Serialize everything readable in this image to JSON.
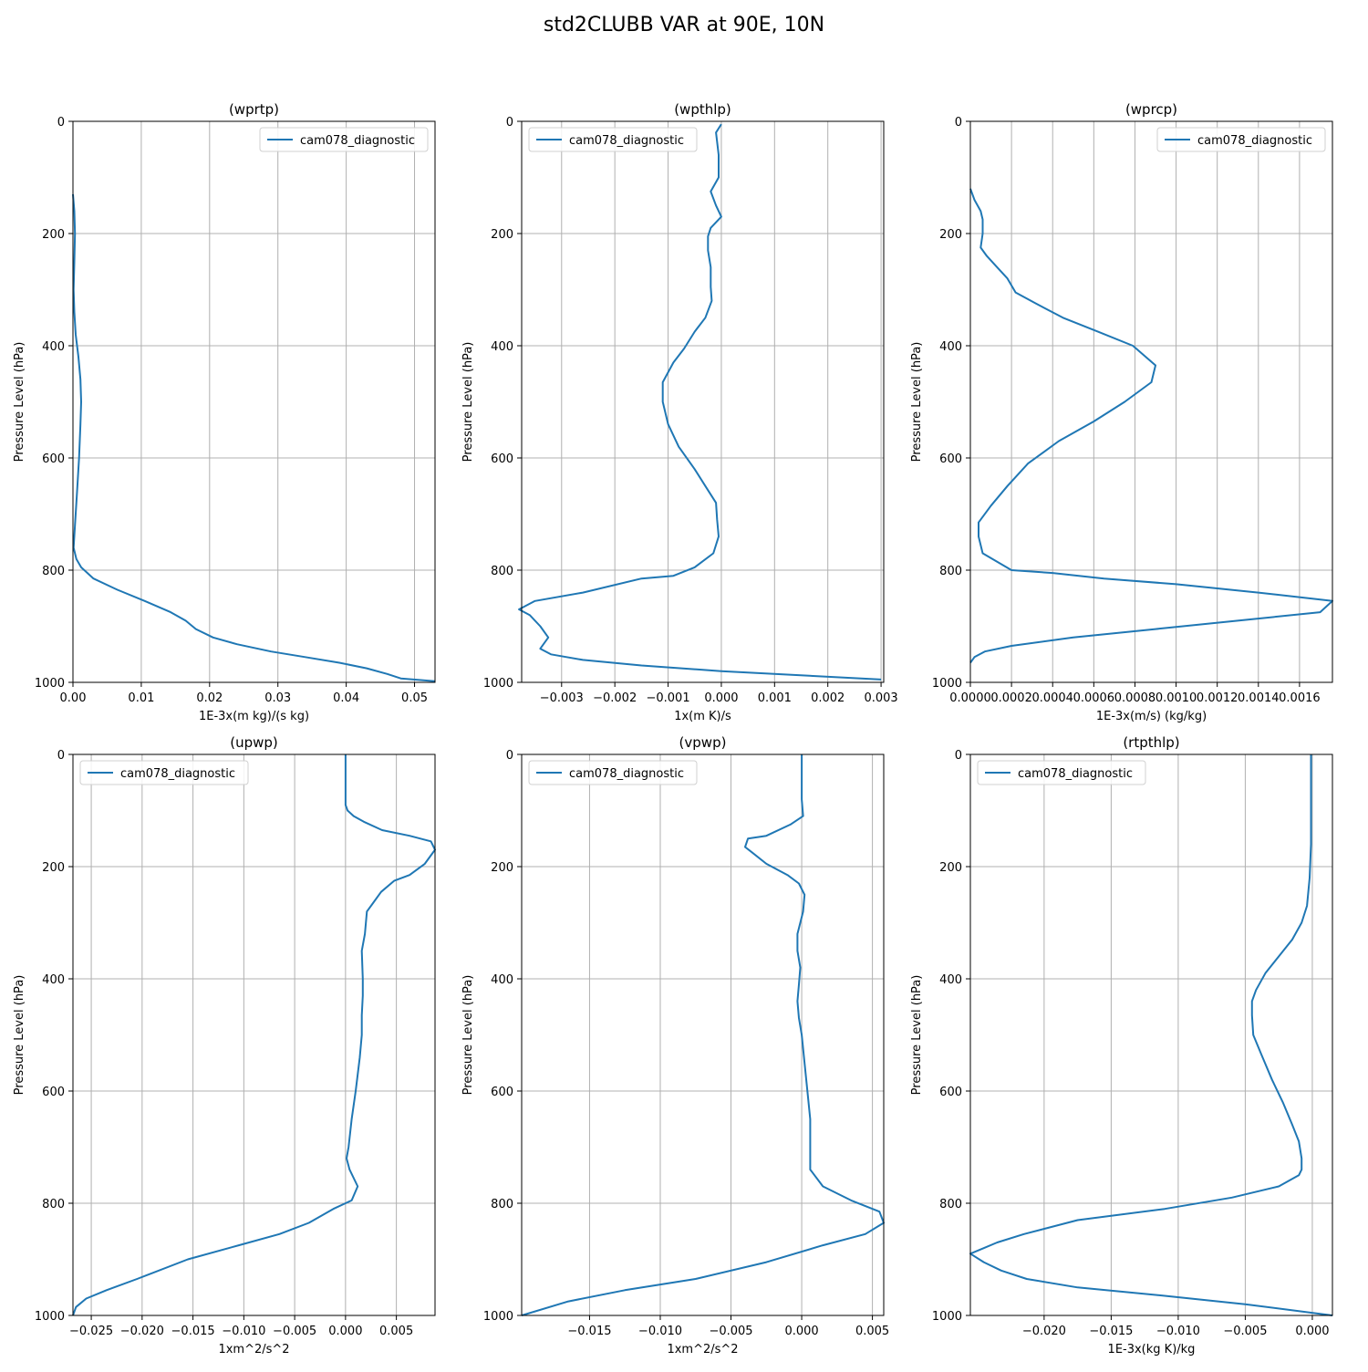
{
  "figure": {
    "title": "std2CLUBB VAR at 90E, 10N"
  },
  "chart_data": [
    {
      "type": "line",
      "title": "(wprtp)",
      "xlabel": "1E-3x(m kg)/(s kg)",
      "ylabel": "Pressure Level (hPa)",
      "xlim": [
        0,
        0.053
      ],
      "ylim": [
        1000,
        0
      ],
      "xticks": [
        0,
        0.01,
        0.02,
        0.03,
        0.04,
        0.05
      ],
      "xtick_labels": [
        "0.00",
        "0.01",
        "0.02",
        "0.03",
        "0.04",
        "0.05"
      ],
      "yticks": [
        0,
        200,
        400,
        600,
        800,
        1000
      ],
      "ytick_labels": [
        "0",
        "200",
        "400",
        "600",
        "800",
        "1000"
      ],
      "grid": true,
      "legend": {
        "position": "upper-right",
        "entries": [
          "cam078_diagnostic"
        ]
      },
      "series": [
        {
          "name": "cam078_diagnostic",
          "color": "#1f77b4",
          "x": [
            0,
            0.0002,
            0.0003,
            0.0002,
            0.0001,
            0.0002,
            0.0004,
            0.0008,
            0.0011,
            0.0012,
            0.0011,
            0.0009,
            0.0006,
            0.0003,
            0.0001,
            0.0005,
            0.0012,
            0.003,
            0.0065,
            0.0105,
            0.0143,
            0.0165,
            0.018,
            0.0205,
            0.024,
            0.029,
            0.034,
            0.039,
            0.043,
            0.046,
            0.048,
            0.053
          ],
          "y": [
            130,
            160,
            200,
            250,
            300,
            340,
            380,
            420,
            460,
            500,
            540,
            600,
            660,
            720,
            760,
            780,
            795,
            815,
            835,
            855,
            875,
            890,
            905,
            920,
            932,
            945,
            955,
            965,
            975,
            985,
            993,
            998
          ]
        }
      ]
    },
    {
      "type": "line",
      "title": "(wpthlp)",
      "xlabel": "1x(m K)/s",
      "ylabel": "Pressure Level (hPa)",
      "xlim": [
        -0.00375,
        0.00305
      ],
      "ylim": [
        1000,
        0
      ],
      "xticks": [
        -0.003,
        -0.002,
        -0.001,
        0,
        0.001,
        0.002,
        0.003
      ],
      "xtick_labels": [
        "−0.003",
        "−0.002",
        "−0.001",
        "0.000",
        "0.001",
        "0.002",
        "0.003"
      ],
      "yticks": [
        0,
        200,
        400,
        600,
        800,
        1000
      ],
      "ytick_labels": [
        "0",
        "200",
        "400",
        "600",
        "800",
        "1000"
      ],
      "grid": true,
      "legend": {
        "position": "upper-left",
        "entries": [
          "cam078_diagnostic"
        ]
      },
      "series": [
        {
          "name": "cam078_diagnostic",
          "color": "#1f77b4",
          "x": [
            0.0,
            -0.0001,
            -5e-05,
            -5e-05,
            -0.0002,
            -0.0001,
            0.0,
            -0.0002,
            -0.00025,
            -0.00025,
            -0.0002,
            -0.0002,
            -0.00018,
            -0.0003,
            -0.0005,
            -0.0007,
            -0.0009,
            -0.0011,
            -0.0011,
            -0.001,
            -0.0008,
            -0.0005,
            -0.0003,
            -0.0001,
            -8e-05,
            -5e-05,
            -0.00015,
            -0.0005,
            -0.0009,
            -0.0015,
            -0.0026,
            -0.0035,
            -0.0038,
            -0.0036,
            -0.0034,
            -0.00325,
            -0.0034,
            -0.0032,
            -0.0026,
            -0.0015,
            0.0,
            0.003
          ],
          "y": [
            5,
            20,
            60,
            100,
            125,
            150,
            170,
            190,
            205,
            230,
            260,
            295,
            320,
            350,
            375,
            405,
            430,
            465,
            500,
            540,
            580,
            620,
            650,
            680,
            710,
            740,
            770,
            795,
            810,
            815,
            840,
            855,
            870,
            880,
            900,
            920,
            940,
            950,
            960,
            970,
            980,
            995
          ]
        }
      ]
    },
    {
      "type": "line",
      "title": "(wprcp)",
      "xlabel": "1E-3x(m/s) (kg/kg)",
      "ylabel": "Pressure Level (hPa)",
      "xlim": [
        0,
        0.00176
      ],
      "ylim": [
        1000,
        0
      ],
      "xticks": [
        0,
        0.0002,
        0.0004,
        0.0006,
        0.0008,
        0.001,
        0.0012,
        0.0014,
        0.0016
      ],
      "xtick_labels": [
        "0.0000",
        "0.0002",
        "0.0004",
        "0.0006",
        "0.0008",
        "0.0010",
        "0.0012",
        "0.0014",
        "0.0016"
      ],
      "yticks": [
        0,
        200,
        400,
        600,
        800,
        1000
      ],
      "ytick_labels": [
        "0",
        "200",
        "400",
        "600",
        "800",
        "1000"
      ],
      "grid": true,
      "legend": {
        "position": "upper-right",
        "entries": [
          "cam078_diagnostic"
        ]
      },
      "series": [
        {
          "name": "cam078_diagnostic",
          "color": "#1f77b4",
          "x": [
            0,
            2e-05,
            5e-05,
            6e-05,
            6e-05,
            5e-05,
            8e-05,
            0.00013,
            0.00018,
            0.00022,
            0.00032,
            0.00045,
            0.00062,
            0.00079,
            0.0009,
            0.00088,
            0.00075,
            0.0006,
            0.00043,
            0.00028,
            0.00018,
            0.0001,
            4e-05,
            4e-05,
            6e-05,
            0.0002,
            0.0004,
            0.00065,
            0.001,
            0.0014,
            0.00176,
            0.0017,
            0.0013,
            0.0009,
            0.0005,
            0.0002,
            7e-05,
            2e-05,
            0
          ],
          "y": [
            120,
            140,
            160,
            175,
            200,
            225,
            240,
            260,
            280,
            305,
            325,
            350,
            375,
            400,
            435,
            465,
            500,
            535,
            570,
            610,
            650,
            685,
            715,
            740,
            770,
            800,
            805,
            815,
            825,
            840,
            855,
            875,
            890,
            905,
            920,
            935,
            945,
            955,
            965
          ]
        }
      ]
    },
    {
      "type": "line",
      "title": "(upwp)",
      "xlabel": "1xm^2/s^2",
      "ylabel": "Pressure Level (hPa)",
      "xlim": [
        -0.0268,
        0.0088
      ],
      "ylim": [
        1000,
        0
      ],
      "xticks": [
        -0.025,
        -0.02,
        -0.015,
        -0.01,
        -0.005,
        0,
        0.005
      ],
      "xtick_labels": [
        "−0.025",
        "−0.020",
        "−0.015",
        "−0.010",
        "−0.005",
        "0.000",
        "0.005"
      ],
      "yticks": [
        0,
        200,
        400,
        600,
        800,
        1000
      ],
      "ytick_labels": [
        "0",
        "200",
        "400",
        "600",
        "800",
        "1000"
      ],
      "grid": true,
      "legend": {
        "position": "upper-left",
        "entries": [
          "cam078_diagnostic"
        ]
      },
      "series": [
        {
          "name": "cam078_diagnostic",
          "color": "#1f77b4",
          "x": [
            0,
            0,
            0.0002,
            0.0008,
            0.0018,
            0.0036,
            0.0063,
            0.0084,
            0.0088,
            0.0078,
            0.0063,
            0.0048,
            0.0035,
            0.0027,
            0.0021,
            0.0019,
            0.0016,
            0.0017,
            0.0017,
            0.0016,
            0.0016,
            0.0014,
            0.001,
            0.0006,
            0.0003,
            0.0001,
            0.0004,
            0.0012,
            0.0006,
            -0.0012,
            -0.0036,
            -0.0065,
            -0.0105,
            -0.0155,
            -0.0205,
            -0.0235,
            -0.0255,
            -0.0265,
            -0.0268
          ],
          "y": [
            0,
            90,
            100,
            110,
            120,
            135,
            145,
            155,
            170,
            195,
            215,
            225,
            245,
            265,
            280,
            320,
            350,
            400,
            430,
            465,
            500,
            540,
            600,
            650,
            700,
            720,
            740,
            770,
            795,
            810,
            835,
            855,
            875,
            900,
            935,
            955,
            970,
            985,
            1000
          ]
        }
      ]
    },
    {
      "type": "line",
      "title": "(vpwp)",
      "xlabel": "1xm^2/s^2",
      "ylabel": "Pressure Level (hPa)",
      "xlim": [
        -0.0198,
        0.0058
      ],
      "ylim": [
        1000,
        0
      ],
      "xticks": [
        -0.015,
        -0.01,
        -0.005,
        0,
        0.005
      ],
      "xtick_labels": [
        "−0.015",
        "−0.010",
        "−0.005",
        "0.000",
        "0.005"
      ],
      "yticks": [
        0,
        200,
        400,
        600,
        800,
        1000
      ],
      "ytick_labels": [
        "0",
        "200",
        "400",
        "600",
        "800",
        "1000"
      ],
      "grid": true,
      "legend": {
        "position": "upper-left",
        "entries": [
          "cam078_diagnostic"
        ]
      },
      "series": [
        {
          "name": "cam078_diagnostic",
          "color": "#1f77b4",
          "x": [
            0,
            0,
            0.0001,
            -0.0008,
            -0.0025,
            -0.0038,
            -0.004,
            -0.0035,
            -0.0025,
            -0.001,
            -0.0002,
            0.0002,
            0.0001,
            -0.0001,
            -0.0003,
            -0.0003,
            -0.0001,
            -0.0002,
            -0.0003,
            -0.0002,
            0.0,
            0.0002,
            0.0004,
            0.0006,
            0.0006,
            0.0006,
            0.0015,
            0.0035,
            0.0055,
            0.0058,
            0.0045,
            0.0015,
            -0.0025,
            -0.0075,
            -0.0125,
            -0.0165,
            -0.0198
          ],
          "y": [
            0,
            80,
            110,
            125,
            145,
            150,
            165,
            175,
            195,
            215,
            230,
            250,
            280,
            300,
            320,
            350,
            380,
            410,
            440,
            470,
            500,
            550,
            600,
            650,
            700,
            740,
            770,
            795,
            815,
            835,
            855,
            875,
            905,
            935,
            955,
            975,
            1000
          ]
        }
      ]
    },
    {
      "type": "line",
      "title": "(rtpthlp)",
      "xlabel": "1E-3x(kg K)/kg",
      "ylabel": "Pressure Level (hPa)",
      "xlim": [
        -0.0255,
        0.0015
      ],
      "ylim": [
        1000,
        0
      ],
      "xticks": [
        -0.02,
        -0.015,
        -0.01,
        -0.005,
        0
      ],
      "xtick_labels": [
        "−0.020",
        "−0.015",
        "−0.010",
        "−0.005",
        "0.000"
      ],
      "yticks": [
        0,
        200,
        400,
        600,
        800,
        1000
      ],
      "ytick_labels": [
        "0",
        "200",
        "400",
        "600",
        "800",
        "1000"
      ],
      "grid": true,
      "legend": {
        "position": "upper-left",
        "entries": [
          "cam078_diagnostic"
        ]
      },
      "series": [
        {
          "name": "cam078_diagnostic",
          "color": "#1f77b4",
          "x": [
            -0.0001,
            -0.0001,
            -0.0001,
            -0.0002,
            -0.0004,
            -0.0008,
            -0.0015,
            -0.0025,
            -0.0035,
            -0.0042,
            -0.0045,
            -0.0045,
            -0.0044,
            -0.0038,
            -0.003,
            -0.0022,
            -0.0015,
            -0.001,
            -0.0008,
            -0.0008,
            -0.001,
            -0.0025,
            -0.006,
            -0.011,
            -0.0175,
            -0.0215,
            -0.0235,
            -0.0245,
            -0.0255,
            -0.0245,
            -0.0232,
            -0.0213,
            -0.0175,
            -0.011,
            -0.005,
            0.0015
          ],
          "y": [
            0,
            80,
            160,
            220,
            270,
            300,
            330,
            360,
            390,
            420,
            440,
            465,
            500,
            535,
            580,
            620,
            660,
            690,
            720,
            740,
            750,
            770,
            790,
            810,
            830,
            855,
            870,
            880,
            890,
            905,
            920,
            935,
            950,
            965,
            980,
            1000
          ]
        }
      ]
    }
  ]
}
